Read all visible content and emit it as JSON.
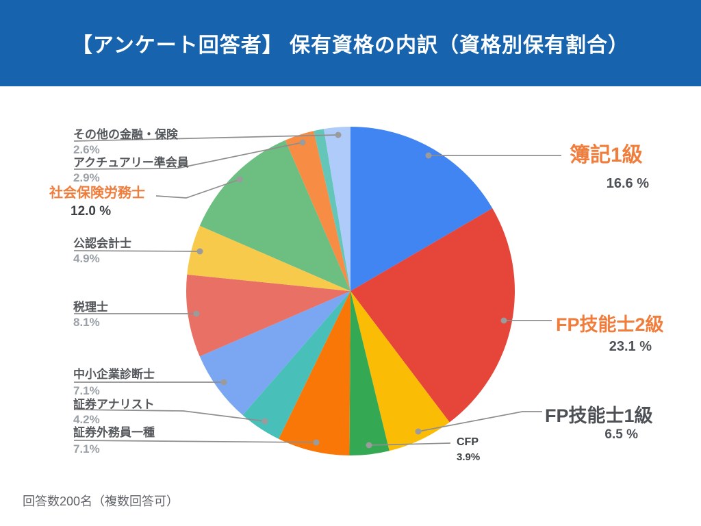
{
  "header": {
    "title": "【アンケート回答者】 保有資格の内訳（資格別保有割合）",
    "background": "#1763AE",
    "text_color": "#FFFFFF"
  },
  "footer": {
    "note": "回答数200名（複数回答可）"
  },
  "colors": {
    "accent_orange": "#F07D3C",
    "list_label_gray": "#54575B",
    "list_pct_gray": "#9AA0A6",
    "dark_gray": "#3C4043",
    "leader_line_gray": "#8E8E8E",
    "leader_dot_gray": "#9B9B9B"
  },
  "chart_data": {
    "type": "pie",
    "title": "【アンケート回答者】 保有資格の内訳（資格別保有割合）",
    "unit": "%",
    "direction": "clockwise",
    "start_angle_deg": 0,
    "legend_position": "callout-labels",
    "note": "回答数200名（複数回答可）",
    "slices": [
      {
        "label": "簿記1級",
        "value": 16.6,
        "pct_text": "16.6 %",
        "color": "#4185F3"
      },
      {
        "label": "FP技能士2級",
        "value": 23.1,
        "pct_text": "23.1 %",
        "color": "#E64539"
      },
      {
        "label": "FP技能士1級",
        "value": 6.5,
        "pct_text": "6.5 %",
        "color": "#FBBC05"
      },
      {
        "label": "CFP",
        "value": 3.9,
        "pct_text": "3.9%",
        "color": "#34A853"
      },
      {
        "label": "証券外務員一種",
        "value": 7.1,
        "pct_text": "7.1%",
        "color": "#F97706"
      },
      {
        "label": "証券アナリスト",
        "value": 4.2,
        "pct_text": "4.2%",
        "color": "#49BFBA"
      },
      {
        "label": "中小企業診断士",
        "value": 7.1,
        "pct_text": "7.1%",
        "color": "#7BA6F2"
      },
      {
        "label": "税理士",
        "value": 8.1,
        "pct_text": "8.1%",
        "color": "#E97064"
      },
      {
        "label": "公認会計士",
        "value": 4.9,
        "pct_text": "4.9%",
        "color": "#F8CA4B"
      },
      {
        "label": "社会保険労務士",
        "value": 12.0,
        "pct_text": "12.0 %",
        "color": "#6DBE81"
      },
      {
        "label": "アクチュアリー準会員",
        "value": 2.9,
        "pct_text": "2.9%",
        "color": "#F78C44"
      },
      {
        "label": "",
        "value": 1.0,
        "pct_text": "",
        "color": "#63C6B8"
      },
      {
        "label": "その他の金融・保険",
        "value": 2.6,
        "pct_text": "2.6%",
        "color": "#AECBFA"
      }
    ]
  }
}
